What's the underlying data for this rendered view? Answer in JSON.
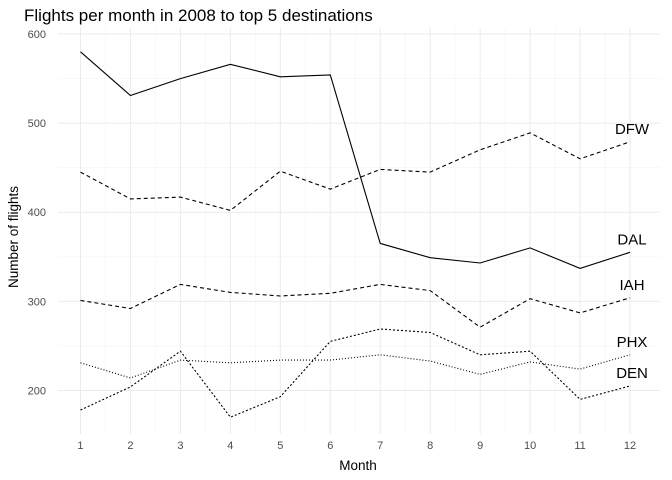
{
  "chart_data": {
    "type": "line",
    "title": "Flights per month in 2008 to top 5 destinations",
    "xlabel": "Month",
    "ylabel": "Number of flights",
    "x": [
      1,
      2,
      3,
      4,
      5,
      6,
      7,
      8,
      9,
      10,
      11,
      12
    ],
    "xlim": [
      0.55,
      12.6
    ],
    "ylim": [
      150,
      600
    ],
    "yticks": [
      200,
      300,
      400,
      500,
      600
    ],
    "grid": true,
    "legend": "none (direct labels at right end of lines)",
    "series": [
      {
        "name": "DAL",
        "line_style": "solid",
        "values": [
          580,
          531,
          550,
          566,
          552,
          554,
          365,
          349,
          343,
          360,
          337,
          355
        ]
      },
      {
        "name": "DFW",
        "line_style": "dashed",
        "values": [
          445,
          415,
          417,
          402,
          446,
          426,
          448,
          445,
          470,
          489,
          460,
          479
        ]
      },
      {
        "name": "IAH",
        "line_style": "dashed",
        "values": [
          301,
          292,
          319,
          310,
          306,
          309,
          319,
          312,
          271,
          303,
          287,
          304
        ]
      },
      {
        "name": "PHX",
        "line_style": "dotted",
        "values": [
          231,
          214,
          234,
          231,
          234,
          234,
          240,
          233,
          218,
          232,
          224,
          240
        ]
      },
      {
        "name": "DEN",
        "line_style": "dashed-dotted",
        "values": [
          178,
          204,
          244,
          170,
          193,
          255,
          269,
          265,
          240,
          244,
          190,
          205
        ]
      }
    ]
  }
}
